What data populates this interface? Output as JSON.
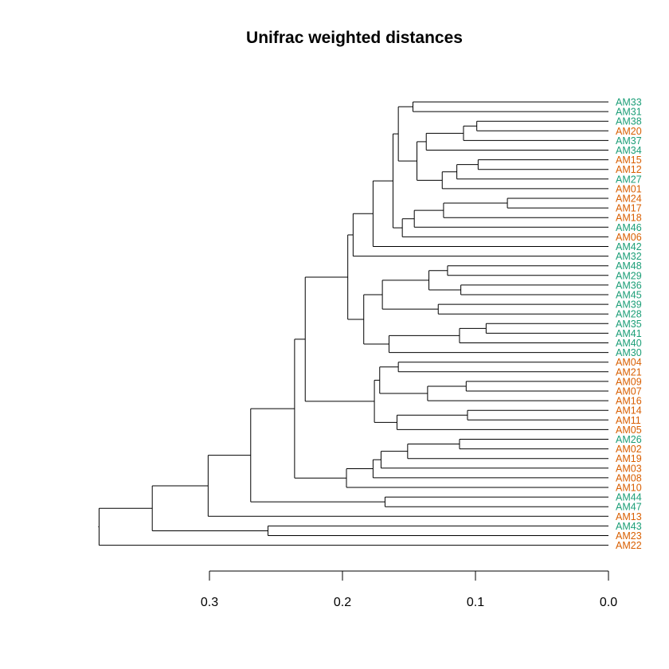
{
  "title": "Unifrac weighted distances",
  "colors": {
    "group_a": "#1B9E77",
    "group_b": "#D95F02",
    "line": "#000000"
  },
  "chart_data": {
    "type": "dendrogram",
    "title": "Unifrac weighted distances",
    "axis": {
      "ticks": [
        0.3,
        0.2,
        0.1,
        0.0
      ],
      "tick_labels": [
        "0.3",
        "0.2",
        "0.1",
        "0.0"
      ],
      "range": [
        0.3,
        0.0
      ]
    },
    "leaves": [
      {
        "label": "AM33",
        "group": "a"
      },
      {
        "label": "AM31",
        "group": "a"
      },
      {
        "label": "AM38",
        "group": "a"
      },
      {
        "label": "AM20",
        "group": "b"
      },
      {
        "label": "AM37",
        "group": "a"
      },
      {
        "label": "AM34",
        "group": "a"
      },
      {
        "label": "AM15",
        "group": "b"
      },
      {
        "label": "AM12",
        "group": "b"
      },
      {
        "label": "AM27",
        "group": "a"
      },
      {
        "label": "AM01",
        "group": "b"
      },
      {
        "label": "AM24",
        "group": "b"
      },
      {
        "label": "AM17",
        "group": "b"
      },
      {
        "label": "AM18",
        "group": "b"
      },
      {
        "label": "AM46",
        "group": "a"
      },
      {
        "label": "AM06",
        "group": "b"
      },
      {
        "label": "AM42",
        "group": "a"
      },
      {
        "label": "AM32",
        "group": "a"
      },
      {
        "label": "AM48",
        "group": "a"
      },
      {
        "label": "AM29",
        "group": "a"
      },
      {
        "label": "AM36",
        "group": "a"
      },
      {
        "label": "AM45",
        "group": "a"
      },
      {
        "label": "AM39",
        "group": "a"
      },
      {
        "label": "AM28",
        "group": "a"
      },
      {
        "label": "AM35",
        "group": "a"
      },
      {
        "label": "AM41",
        "group": "a"
      },
      {
        "label": "AM40",
        "group": "a"
      },
      {
        "label": "AM30",
        "group": "a"
      },
      {
        "label": "AM04",
        "group": "b"
      },
      {
        "label": "AM21",
        "group": "b"
      },
      {
        "label": "AM09",
        "group": "b"
      },
      {
        "label": "AM07",
        "group": "b"
      },
      {
        "label": "AM16",
        "group": "b"
      },
      {
        "label": "AM14",
        "group": "b"
      },
      {
        "label": "AM11",
        "group": "b"
      },
      {
        "label": "AM05",
        "group": "b"
      },
      {
        "label": "AM26",
        "group": "a"
      },
      {
        "label": "AM02",
        "group": "b"
      },
      {
        "label": "AM19",
        "group": "b"
      },
      {
        "label": "AM03",
        "group": "b"
      },
      {
        "label": "AM08",
        "group": "b"
      },
      {
        "label": "AM10",
        "group": "b"
      },
      {
        "label": "AM44",
        "group": "a"
      },
      {
        "label": "AM47",
        "group": "a"
      },
      {
        "label": "AM13",
        "group": "b"
      },
      {
        "label": "AM43",
        "group": "a"
      },
      {
        "label": "AM23",
        "group": "b"
      },
      {
        "label": "AM22",
        "group": "b"
      }
    ],
    "merges": [
      {
        "a": "AM33",
        "b": "AM31",
        "h": 0.147
      },
      {
        "a": "AM38",
        "b": "AM20",
        "h": 0.099
      },
      {
        "a": "m1",
        "b": "AM37",
        "h": 0.109
      },
      {
        "a": "m2",
        "b": "AM34",
        "h": 0.137
      },
      {
        "a": "AM15",
        "b": "AM12",
        "h": 0.098
      },
      {
        "a": "m4",
        "b": "AM27",
        "h": 0.114
      },
      {
        "a": "m5",
        "b": "AM01",
        "h": 0.125
      },
      {
        "a": "m3",
        "b": "m6",
        "h": 0.144
      },
      {
        "a": "m0",
        "b": "m7",
        "h": 0.158
      },
      {
        "a": "AM24",
        "b": "AM17",
        "h": 0.076
      },
      {
        "a": "m9",
        "b": "AM18",
        "h": 0.124
      },
      {
        "a": "m10",
        "b": "AM46",
        "h": 0.146
      },
      {
        "a": "m11",
        "b": "AM06",
        "h": 0.155
      },
      {
        "a": "m8",
        "b": "m12",
        "h": 0.162
      },
      {
        "a": "m13",
        "b": "AM42",
        "h": 0.177
      },
      {
        "a": "m14",
        "b": "AM32",
        "h": 0.192
      },
      {
        "a": "AM48",
        "b": "AM29",
        "h": 0.121
      },
      {
        "a": "AM36",
        "b": "AM45",
        "h": 0.111
      },
      {
        "a": "m16",
        "b": "m17",
        "h": 0.135
      },
      {
        "a": "AM39",
        "b": "AM28",
        "h": 0.128
      },
      {
        "a": "m18",
        "b": "m19",
        "h": 0.17
      },
      {
        "a": "AM35",
        "b": "AM41",
        "h": 0.092
      },
      {
        "a": "m21",
        "b": "AM40",
        "h": 0.112
      },
      {
        "a": "m22",
        "b": "AM30",
        "h": 0.165
      },
      {
        "a": "m20",
        "b": "m23",
        "h": 0.184
      },
      {
        "a": "m15",
        "b": "m24",
        "h": 0.196
      },
      {
        "a": "AM04",
        "b": "AM21",
        "h": 0.158
      },
      {
        "a": "AM09",
        "b": "AM07",
        "h": 0.107
      },
      {
        "a": "m27",
        "b": "AM16",
        "h": 0.136
      },
      {
        "a": "m26",
        "b": "m28",
        "h": 0.172
      },
      {
        "a": "AM14",
        "b": "AM11",
        "h": 0.106
      },
      {
        "a": "m30",
        "b": "AM05",
        "h": 0.159
      },
      {
        "a": "m29",
        "b": "m31",
        "h": 0.176
      },
      {
        "a": "m25",
        "b": "m32",
        "h": 0.228
      },
      {
        "a": "AM26",
        "b": "AM02",
        "h": 0.112
      },
      {
        "a": "m34",
        "b": "AM19",
        "h": 0.151
      },
      {
        "a": "m35",
        "b": "AM03",
        "h": 0.171
      },
      {
        "a": "m36",
        "b": "AM08",
        "h": 0.177
      },
      {
        "a": "m37",
        "b": "AM10",
        "h": 0.197
      },
      {
        "a": "m33",
        "b": "m38",
        "h": 0.236
      },
      {
        "a": "AM44",
        "b": "AM47",
        "h": 0.168
      },
      {
        "a": "m39",
        "b": "m40",
        "h": 0.269
      },
      {
        "a": "m41",
        "b": "AM13",
        "h": 0.301
      },
      {
        "a": "AM43",
        "b": "AM23",
        "h": 0.256
      },
      {
        "a": "m42",
        "b": "m43",
        "h": 0.343
      },
      {
        "a": "m44",
        "b": "AM22",
        "h": 0.383
      }
    ]
  }
}
